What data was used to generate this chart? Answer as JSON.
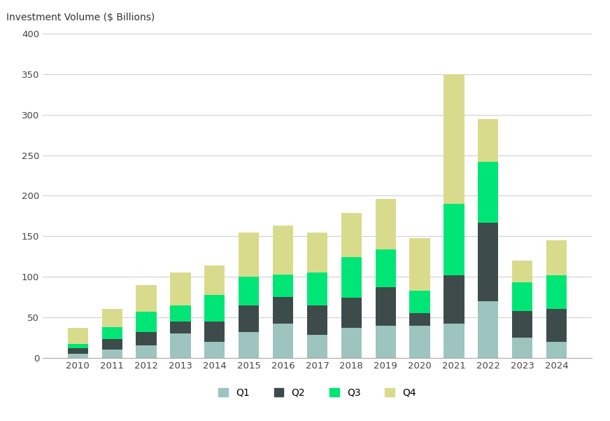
{
  "years": [
    2010,
    2011,
    2012,
    2013,
    2014,
    2015,
    2016,
    2017,
    2018,
    2019,
    2020,
    2021,
    2022,
    2023,
    2024
  ],
  "Q1": [
    5,
    10,
    15,
    30,
    20,
    32,
    42,
    28,
    37,
    40,
    40,
    42,
    70,
    25,
    20
  ],
  "Q2": [
    7,
    13,
    17,
    15,
    25,
    33,
    33,
    37,
    37,
    47,
    15,
    60,
    97,
    33,
    40
  ],
  "Q3": [
    5,
    15,
    25,
    20,
    33,
    35,
    28,
    40,
    50,
    47,
    28,
    88,
    75,
    35,
    42
  ],
  "Q4": [
    20,
    22,
    33,
    40,
    36,
    55,
    60,
    50,
    55,
    62,
    65,
    160,
    53,
    27,
    43
  ],
  "colors": {
    "Q1": "#9dc4be",
    "Q2": "#3d4b4b",
    "Q3": "#00e676",
    "Q4": "#d9db8c"
  },
  "top_label": "Investment Volume ($ Billions)",
  "ylim": [
    0,
    400
  ],
  "yticks": [
    0,
    50,
    100,
    150,
    200,
    250,
    300,
    350,
    400
  ],
  "background_color": "#ffffff",
  "grid_color": "#d0d0d0",
  "bar_width": 0.6
}
